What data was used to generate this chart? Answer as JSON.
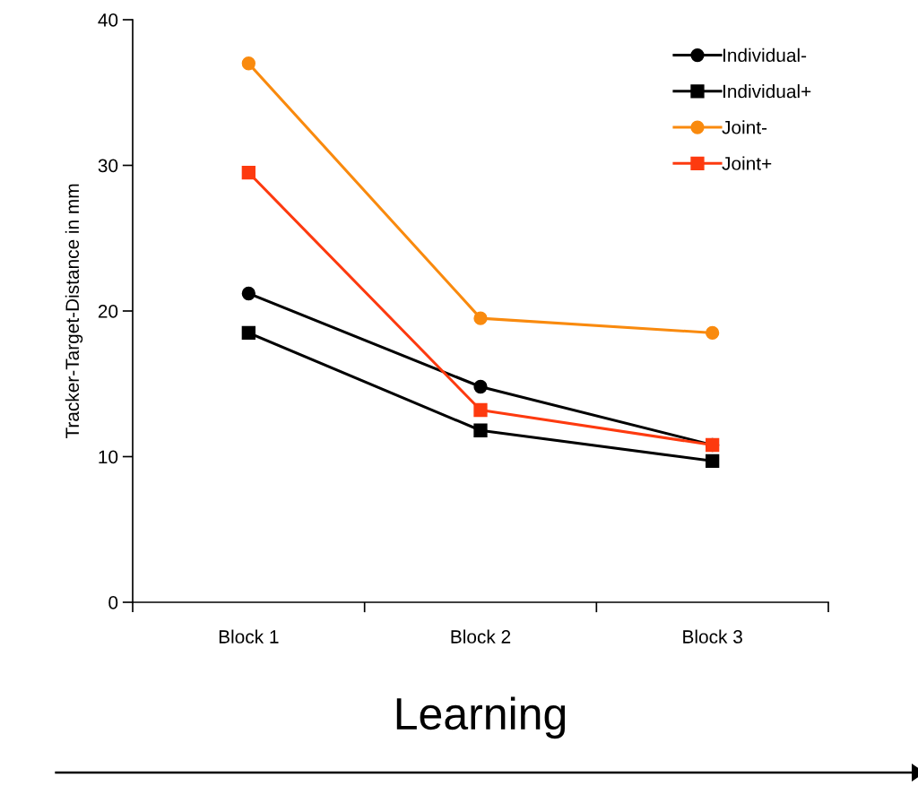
{
  "chart_data": {
    "type": "line",
    "xlabel": "Learning",
    "ylabel": "Tracker-Target-Distance in mm",
    "categories": [
      "Block 1",
      "Block 2",
      "Block 3"
    ],
    "series": [
      {
        "name": "Individual-",
        "color": "#000000",
        "marker": "circle",
        "values": [
          21.2,
          14.8,
          10.8
        ]
      },
      {
        "name": "Individual+",
        "color": "#000000",
        "marker": "square",
        "values": [
          18.5,
          11.8,
          9.7
        ]
      },
      {
        "name": "Joint-",
        "color": "#f98a0e",
        "marker": "circle",
        "values": [
          37.0,
          19.5,
          18.5
        ]
      },
      {
        "name": "Joint+",
        "color": "#fd3a0f",
        "marker": "square",
        "values": [
          29.5,
          13.2,
          10.8
        ]
      }
    ],
    "ylim": [
      0,
      40
    ],
    "yticks": [
      0,
      10,
      20,
      30,
      40
    ],
    "grid": false,
    "legend": "top right",
    "line_style": "solid"
  }
}
